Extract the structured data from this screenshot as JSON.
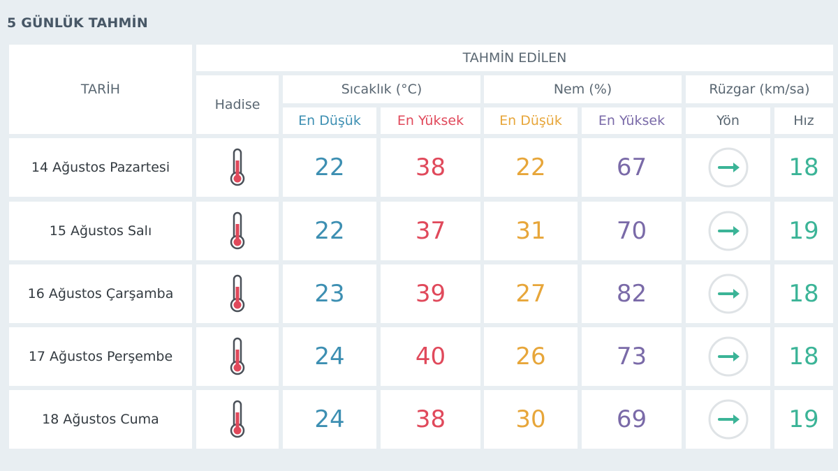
{
  "title": "5 GÜNLÜK TAHMİN",
  "headers": {
    "tarih": "TARİH",
    "tahmin_edilen": "TAHMİN EDİLEN",
    "hadise": "Hadise",
    "sicaklik": "Sıcaklık (°C)",
    "nem": "Nem (%)",
    "ruzgar": "Rüzgar (km/sa)",
    "en_dusuk": "En Düşük",
    "en_yuksek": "En Yüksek",
    "yon": "Yön",
    "hiz": "Hız"
  },
  "colors": {
    "temp_low": "#3d8fb2",
    "temp_high": "#e0495b",
    "hum_low": "#e7a63a",
    "hum_high": "#7a6aa8",
    "wind": "#3bb497"
  },
  "rows": [
    {
      "date": "14 Ağustos Pazartesi",
      "hadise_icon": "thermometer-icon",
      "temp_low": "22",
      "temp_high": "38",
      "hum_low": "22",
      "hum_high": "67",
      "wind_dir_icon": "arrow-east-icon",
      "wind_speed": "18"
    },
    {
      "date": "15 Ağustos Salı",
      "hadise_icon": "thermometer-icon",
      "temp_low": "22",
      "temp_high": "37",
      "hum_low": "31",
      "hum_high": "70",
      "wind_dir_icon": "arrow-east-icon",
      "wind_speed": "19"
    },
    {
      "date": "16 Ağustos Çarşamba",
      "hadise_icon": "thermometer-icon",
      "temp_low": "23",
      "temp_high": "39",
      "hum_low": "27",
      "hum_high": "82",
      "wind_dir_icon": "arrow-east-icon",
      "wind_speed": "18"
    },
    {
      "date": "17 Ağustos Perşembe",
      "hadise_icon": "thermometer-icon",
      "temp_low": "24",
      "temp_high": "40",
      "hum_low": "26",
      "hum_high": "73",
      "wind_dir_icon": "arrow-east-icon",
      "wind_speed": "18"
    },
    {
      "date": "18 Ağustos Cuma",
      "hadise_icon": "thermometer-icon",
      "temp_low": "24",
      "temp_high": "38",
      "hum_low": "30",
      "hum_high": "69",
      "wind_dir_icon": "arrow-east-icon",
      "wind_speed": "19"
    }
  ]
}
